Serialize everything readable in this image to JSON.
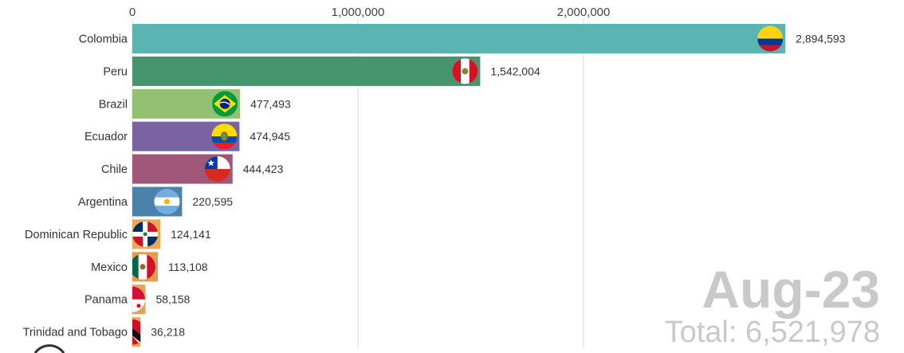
{
  "chart_data": {
    "type": "bar",
    "orientation": "horizontal",
    "title": "",
    "xlim": [
      0,
      3400000
    ],
    "x_ticks": [
      0,
      1000000,
      2000000
    ],
    "x_tick_labels": [
      "0",
      "1,000,000",
      "2,000,000"
    ],
    "grid": true,
    "categories": [
      "Colombia",
      "Peru",
      "Brazil",
      "Ecuador",
      "Chile",
      "Argentina",
      "Dominican Republic",
      "Mexico",
      "Panama",
      "Trinidad and Tobago"
    ],
    "values": [
      2894593,
      1542004,
      477493,
      474945,
      444423,
      220595,
      124141,
      113108,
      58158,
      36218
    ],
    "value_labels": [
      "2,894,593",
      "1,542,004",
      "477,493",
      "474,945",
      "444,423",
      "220,595",
      "124,141",
      "113,108",
      "58,158",
      "36,218"
    ],
    "colors": [
      "#5ab4b0",
      "#47956e",
      "#93c174",
      "#7a63a3",
      "#a1577a",
      "#4a82ac",
      "#eaa754",
      "#e89a4e",
      "#e6a253",
      "#e9a857"
    ],
    "flags": [
      "colombia-flag",
      "peru-flag",
      "brazil-flag",
      "ecuador-flag",
      "chile-flag",
      "argentina-flag",
      "dominican-republic-flag",
      "mexico-flag",
      "panama-flag",
      "trinidad-and-tobago-flag"
    ],
    "date_label": "Aug-23",
    "total_label": "Total: 6,521,978"
  }
}
